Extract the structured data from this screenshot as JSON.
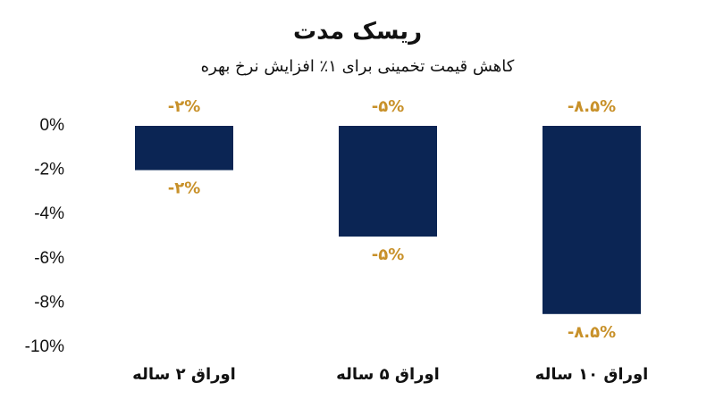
{
  "chart_data": {
    "type": "bar",
    "title": "ریسک مدت",
    "subtitle": "کاهش قیمت تخمینی برای ۱٪ افزایش نرخ بهره",
    "categories": [
      "اوراق ۲ ساله",
      "اوراق ۵ ساله",
      "اوراق ۱۰ ساله"
    ],
    "values": [
      -2,
      -5,
      -8.5
    ],
    "value_labels": [
      "-۲%",
      "-۵%",
      "-۸.۵%"
    ],
    "color": "#0b2554",
    "label_color": "#c8912a",
    "ylim": [
      -10,
      0
    ],
    "yticks": [
      {
        "value": 0,
        "label": "0%"
      },
      {
        "value": -2,
        "label": "-2%"
      },
      {
        "value": -4,
        "label": "-4%"
      },
      {
        "value": -6,
        "label": "-6%"
      },
      {
        "value": -8,
        "label": "-8%"
      },
      {
        "value": -10,
        "label": "-10%"
      }
    ],
    "grid": false
  }
}
